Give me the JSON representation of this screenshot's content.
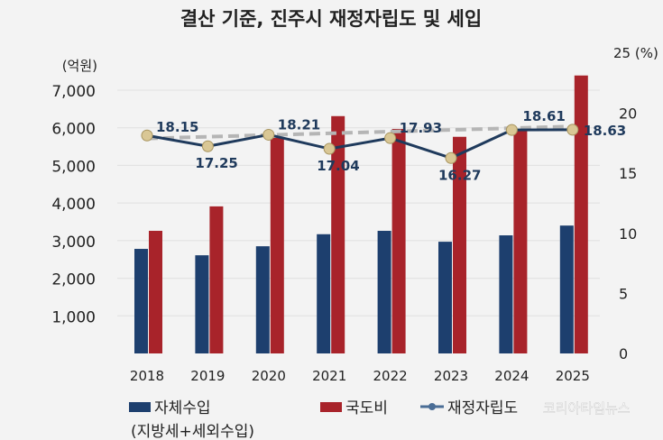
{
  "chart_data": {
    "type": "bar+line",
    "title": "결산 기준, 진주시 재정자립도 및 세입",
    "categories": [
      "2018",
      "2019",
      "2020",
      "2021",
      "2022",
      "2023",
      "2024",
      "2025"
    ],
    "y_left": {
      "unit": "(억원)",
      "ylim": [
        0,
        7000
      ],
      "ticks": [
        "1,000",
        "2,000",
        "3,000",
        "4,000",
        "5,000",
        "6,000",
        "7,000"
      ]
    },
    "y_right": {
      "unit": "25 (%)",
      "ylim": [
        0,
        25
      ],
      "ticks": [
        "0",
        "5",
        "10",
        "15",
        "20"
      ]
    },
    "series": [
      {
        "name": "자체수입",
        "name_sub": "(지방세+세외수입)",
        "type": "bar",
        "color": "#1d3f6e",
        "values": [
          2780,
          2610,
          2850,
          3170,
          3260,
          2970,
          3140,
          3400
        ]
      },
      {
        "name": "국도비",
        "type": "bar",
        "color": "#a8232a",
        "values": [
          3260,
          3910,
          5730,
          6310,
          5970,
          5760,
          5950,
          7390
        ]
      },
      {
        "name": "재정자립도",
        "type": "line",
        "axis": "right",
        "color": "#1f3a5c",
        "values": [
          18.15,
          17.25,
          18.21,
          17.04,
          17.93,
          16.27,
          18.61,
          18.63
        ],
        "labels": [
          "18.15",
          "17.25",
          "18.21",
          "17.04",
          "17.93",
          "16.27",
          "18.61",
          "18.63"
        ]
      }
    ],
    "trendline": {
      "style": "dashed",
      "color": "#b5b5b5"
    },
    "grid": true,
    "legend": "bottom"
  },
  "watermark": "코리아타임뉴스"
}
